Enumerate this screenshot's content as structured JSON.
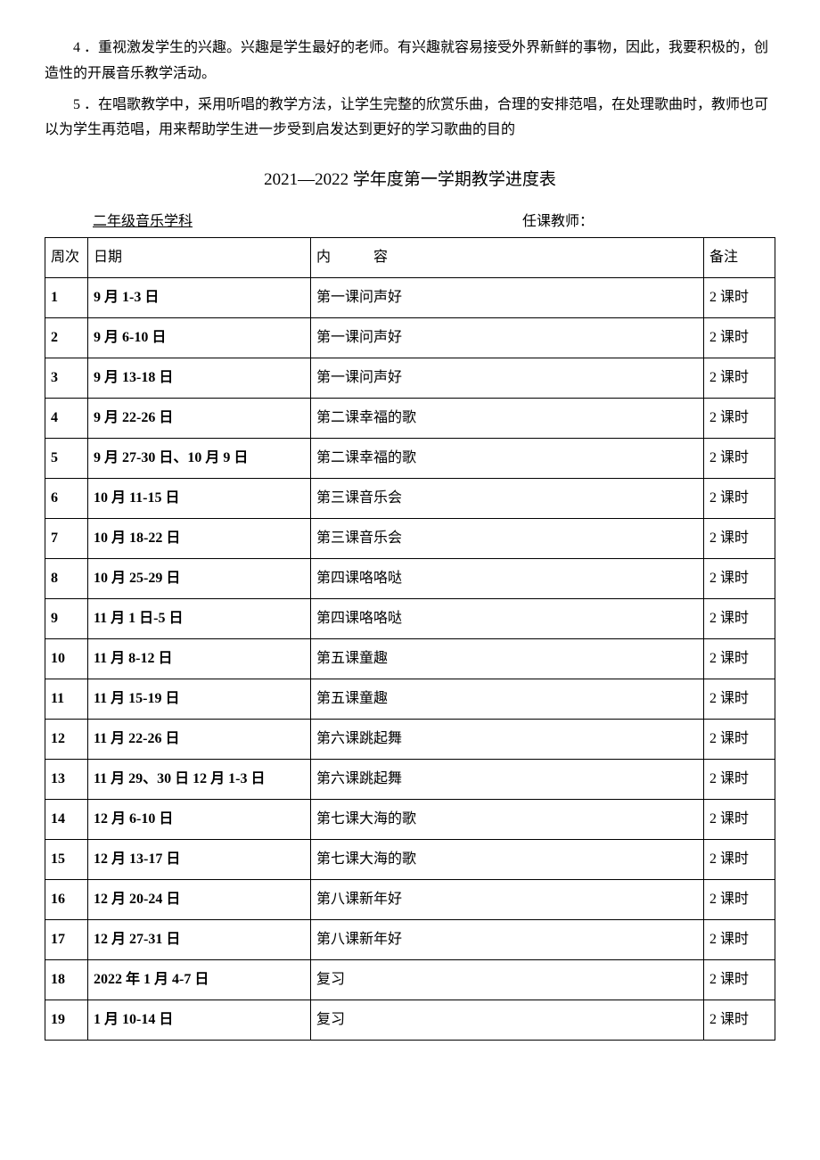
{
  "paragraphs": {
    "p4": "4 ．重视激发学生的兴趣。兴趣是学生最好的老师。有兴趣就容易接受外界新鲜的事物，因此，我要积极的，创造性的开展音乐教学活动。",
    "p5": "5 ．在唱歌教学中，采用听唱的教学方法，让学生完整的欣赏乐曲，合理的安排范唱，在处理歌曲时，教师也可以为学生再范唱，用来帮助学生进一步受到启发达到更好的学习歌曲的目的"
  },
  "title": "2021—2022 学年度第一学期教学进度表",
  "subject_label": "二年级音乐学科",
  "teacher_label": "任课教师：",
  "table": {
    "headers": {
      "week": "周次",
      "date": "日期",
      "content_prefix": "内",
      "content_suffix": "容",
      "note": "备注"
    },
    "rows": [
      {
        "week": "1",
        "date": "9 月 1-3 日",
        "content": "第一课问声好",
        "note": "2 课时"
      },
      {
        "week": "2",
        "date": "9 月 6-10 日",
        "content": "第一课问声好",
        "note": "2 课时"
      },
      {
        "week": "3",
        "date": "9 月 13-18 日",
        "content": "第一课问声好",
        "note": "2 课时"
      },
      {
        "week": "4",
        "date": "9 月 22-26 日",
        "content": "第二课幸福的歌",
        "note": "2 课时"
      },
      {
        "week": "5",
        "date": "9 月 27-30 日、10 月 9 日",
        "content": "第二课幸福的歌",
        "note": "2 课时"
      },
      {
        "week": "6",
        "date": "10 月 11-15 日",
        "content": "第三课音乐会",
        "note": "2 课时"
      },
      {
        "week": "7",
        "date": "10 月 18-22 日",
        "content": "第三课音乐会",
        "note": "2 课时"
      },
      {
        "week": "8",
        "date": "10 月 25-29 日",
        "content": "第四课咯咯哒",
        "note": "2 课时"
      },
      {
        "week": "9",
        "date": "11 月 1 日-5 日",
        "content": "第四课咯咯哒",
        "note": "2 课时"
      },
      {
        "week": "10",
        "date": "11 月 8-12 日",
        "content": "第五课童趣",
        "note": "2 课时"
      },
      {
        "week": "11",
        "date": "11 月 15-19 日",
        "content": "第五课童趣",
        "note": "2 课时"
      },
      {
        "week": "12",
        "date": "11 月 22-26 日",
        "content": "第六课跳起舞",
        "note": "2 课时"
      },
      {
        "week": "13",
        "date": "11 月 29、30 日 12 月 1-3 日",
        "content": "第六课跳起舞",
        "note": "2 课时"
      },
      {
        "week": "14",
        "date": "12 月 6-10 日",
        "content": "第七课大海的歌",
        "note": "2 课时"
      },
      {
        "week": "15",
        "date": "12 月 13-17 日",
        "content": "第七课大海的歌",
        "note": "2 课时"
      },
      {
        "week": "16",
        "date": "12 月 20-24 日",
        "content": "第八课新年好",
        "note": "2 课时"
      },
      {
        "week": "17",
        "date": "12 月 27-31 日",
        "content": "第八课新年好",
        "note": "2 课时"
      },
      {
        "week": "18",
        "date": "2022 年 1 月 4-7 日",
        "content": "复习",
        "note": "2 课时"
      },
      {
        "week": "19",
        "date": "1 月 10-14 日",
        "content": "复习",
        "note": "2 课时"
      }
    ]
  }
}
